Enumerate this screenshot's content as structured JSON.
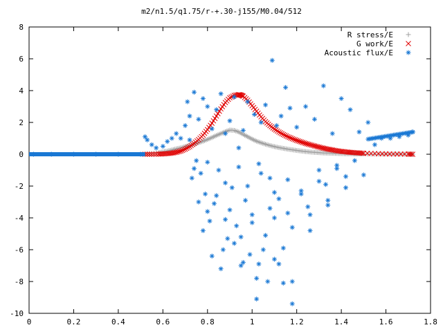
{
  "chart_data": {
    "type": "scatter",
    "title": "m2/n1.5/q1.75/r-+.30-j155/M0.04/512",
    "xlabel": "",
    "ylabel": "",
    "xlim": [
      0,
      1.8
    ],
    "ylim": [
      -10,
      8
    ],
    "x_ticks": [
      "0",
      "0.2",
      "0.4",
      "0.6",
      "0.8",
      "1",
      "1.2",
      "1.4",
      "1.6",
      "1.8"
    ],
    "y_ticks": [
      "8",
      "6",
      "4",
      "2",
      "0",
      "-2",
      "-4",
      "-6",
      "-8",
      "-10"
    ],
    "grid": false,
    "legend_position": "top-right",
    "series": [
      {
        "name": "R stress/E",
        "marker": "plus",
        "color": "#a0a0a0",
        "x": [
          0.52,
          0.55,
          0.58,
          0.6,
          0.62,
          0.64,
          0.66,
          0.68,
          0.7,
          0.72,
          0.74,
          0.76,
          0.78,
          0.8,
          0.82,
          0.84,
          0.86,
          0.88,
          0.9,
          0.92,
          0.94,
          0.96,
          0.98,
          1.0,
          1.02,
          1.04,
          1.06,
          1.08,
          1.1,
          1.12,
          1.14,
          1.16,
          1.18,
          1.2,
          1.22,
          1.24,
          1.26,
          1.28,
          1.3,
          1.32,
          1.34,
          1.36,
          1.38,
          1.4,
          1.42,
          1.44,
          1.46,
          1.48,
          1.5,
          1.55,
          1.6,
          1.65,
          1.7,
          1.72
        ],
        "y": [
          0.02,
          0.05,
          0.1,
          0.15,
          0.2,
          0.27,
          0.34,
          0.4,
          0.48,
          0.55,
          0.63,
          0.72,
          0.82,
          0.93,
          1.05,
          1.18,
          1.3,
          1.42,
          1.52,
          1.5,
          1.4,
          1.25,
          1.1,
          0.95,
          0.82,
          0.72,
          0.63,
          0.55,
          0.48,
          0.42,
          0.37,
          0.32,
          0.28,
          0.24,
          0.2,
          0.17,
          0.14,
          0.12,
          0.1,
          0.08,
          0.07,
          0.06,
          0.05,
          0.04,
          0.03,
          0.03,
          0.02,
          0.02,
          0.02,
          0.01,
          0.01,
          0.01,
          0.0,
          0.0
        ]
      },
      {
        "name": "G work/E",
        "marker": "cross",
        "color": "#e00000",
        "x": [
          0.52,
          0.55,
          0.58,
          0.6,
          0.62,
          0.64,
          0.66,
          0.68,
          0.7,
          0.72,
          0.74,
          0.76,
          0.78,
          0.8,
          0.82,
          0.84,
          0.86,
          0.88,
          0.9,
          0.92,
          0.94,
          0.95,
          0.96,
          0.98,
          1.0,
          1.02,
          1.04,
          1.06,
          1.08,
          1.1,
          1.12,
          1.14,
          1.16,
          1.18,
          1.2,
          1.22,
          1.24,
          1.26,
          1.28,
          1.3,
          1.32,
          1.34,
          1.36,
          1.38,
          1.4,
          1.42,
          1.44,
          1.46,
          1.48,
          1.5,
          1.55,
          1.6,
          1.65,
          1.7,
          1.72
        ],
        "y": [
          0.0,
          0.0,
          0.01,
          0.02,
          0.04,
          0.07,
          0.12,
          0.2,
          0.32,
          0.48,
          0.68,
          0.92,
          1.2,
          1.55,
          1.95,
          2.4,
          2.85,
          3.25,
          3.55,
          3.7,
          3.75,
          3.72,
          3.65,
          3.4,
          3.05,
          2.7,
          2.35,
          2.05,
          1.8,
          1.58,
          1.4,
          1.24,
          1.1,
          0.98,
          0.87,
          0.77,
          0.68,
          0.6,
          0.52,
          0.45,
          0.38,
          0.32,
          0.27,
          0.22,
          0.18,
          0.15,
          0.12,
          0.1,
          0.08,
          0.06,
          0.04,
          0.02,
          0.01,
          0.01,
          0.0
        ]
      },
      {
        "name": "Acoustic flux/E",
        "marker": "star",
        "color": "#1a78d4",
        "x": [
          0.02,
          0.1,
          0.2,
          0.3,
          0.4,
          0.5,
          0.52,
          0.53,
          0.55,
          0.57,
          0.6,
          0.62,
          0.64,
          0.66,
          0.68,
          0.7,
          0.71,
          0.72,
          0.73,
          0.74,
          0.75,
          0.76,
          0.77,
          0.78,
          0.79,
          0.8,
          0.81,
          0.82,
          0.83,
          0.84,
          0.85,
          0.86,
          0.87,
          0.88,
          0.89,
          0.9,
          0.91,
          0.92,
          0.93,
          0.94,
          0.95,
          0.96,
          0.97,
          0.98,
          0.99,
          1.0,
          1.01,
          1.02,
          1.03,
          1.04,
          1.05,
          1.06,
          1.07,
          1.08,
          1.09,
          1.1,
          1.11,
          1.12,
          1.13,
          1.14,
          1.15,
          1.16,
          1.17,
          1.18,
          1.2,
          1.22,
          1.24,
          1.26,
          1.28,
          1.3,
          1.32,
          1.34,
          1.36,
          1.38,
          1.4,
          1.42,
          1.44,
          1.46,
          1.48,
          1.5,
          1.52,
          1.55,
          1.58,
          1.62,
          1.66,
          1.7,
          1.72,
          0.74,
          0.76,
          0.78,
          0.8,
          0.82,
          0.84,
          0.86,
          0.88,
          0.9,
          0.92,
          0.94,
          0.96,
          0.98,
          1.0,
          1.02,
          1.04,
          1.06,
          1.08,
          1.1,
          1.12,
          1.14,
          1.16,
          1.18,
          1.22,
          1.26,
          1.3,
          1.34,
          1.38,
          1.42,
          0.72,
          0.8,
          0.88,
          0.95,
          1.03,
          1.1,
          1.18,
          1.25,
          1.33
        ],
        "y": [
          0.0,
          0.0,
          0.0,
          0.0,
          0.0,
          0.0,
          1.1,
          0.9,
          0.6,
          0.4,
          0.5,
          0.8,
          1.0,
          1.3,
          1.0,
          1.8,
          3.3,
          2.4,
          -1.5,
          3.9,
          -0.4,
          2.2,
          -1.2,
          3.5,
          -2.5,
          3.0,
          -4.2,
          1.6,
          -3.1,
          2.8,
          -1.0,
          3.8,
          -6.0,
          1.3,
          -5.3,
          2.1,
          -2.1,
          3.6,
          -4.5,
          0.4,
          -7.0,
          1.5,
          -2.9,
          3.3,
          -6.3,
          -3.8,
          2.5,
          -9.1,
          -0.6,
          2.0,
          -6.0,
          3.1,
          -8.0,
          -1.5,
          5.9,
          -4.0,
          1.8,
          -6.9,
          2.4,
          -8.1,
          4.2,
          -3.7,
          2.9,
          -9.4,
          1.7,
          -2.5,
          3.0,
          -4.8,
          2.2,
          -1.0,
          4.3,
          -3.2,
          1.3,
          -0.7,
          3.5,
          -2.1,
          2.8,
          -0.4,
          1.4,
          -1.3,
          2.0,
          0.6,
          1.0,
          1.0,
          1.1,
          1.2,
          1.4,
          -0.9,
          -3.0,
          -4.8,
          -0.5,
          -6.4,
          -2.6,
          -7.2,
          -1.8,
          -3.5,
          -5.6,
          -0.8,
          -6.8,
          -2.0,
          -4.3,
          -7.8,
          -1.2,
          -5.1,
          -3.4,
          -6.6,
          -2.8,
          -5.9,
          -1.6,
          -4.6,
          -2.3,
          -3.8,
          -1.7,
          -2.9,
          -0.9,
          -1.4,
          0.9,
          -3.6,
          -4.1,
          -5.2,
          -6.9,
          -2.4,
          -8.0,
          -3.3,
          -1.9
        ]
      }
    ]
  }
}
